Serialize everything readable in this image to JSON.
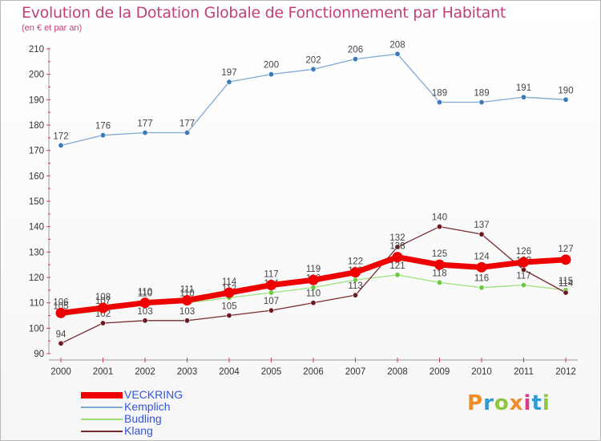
{
  "title": "Evolution de la Dotation Globale de Fonctionnement par Habitant",
  "subtitle": "(en € et par an)",
  "logo": {
    "text": "Proxiti",
    "colors": [
      "#f28c28",
      "#2b9cd8",
      "#8dc63f",
      "#f28c28",
      "#d63c8a",
      "#2b9cd8",
      "#8dc63f"
    ]
  },
  "chart_data": {
    "type": "line",
    "title": "Evolution de la Dotation Globale de Fonctionnement par Habitant",
    "subtitle": "(en € et par an)",
    "xlabel": "",
    "ylabel": "",
    "ylim": [
      90,
      210
    ],
    "y_ticks": [
      90,
      100,
      110,
      120,
      130,
      140,
      150,
      160,
      170,
      180,
      190,
      200,
      210
    ],
    "grid": false,
    "legend_position": "bottom-left",
    "categories": [
      "2000",
      "2001",
      "2002",
      "2003",
      "2004",
      "2005",
      "2006",
      "2007",
      "2008",
      "2009",
      "2010",
      "2011",
      "2012"
    ],
    "series": [
      {
        "name": "Kemplich",
        "color": "#80a8d4",
        "marker": "#3a7ab8",
        "values": [
          172,
          176,
          177,
          177,
          197,
          200,
          202,
          206,
          208,
          189,
          189,
          191,
          190
        ]
      },
      {
        "name": "Budling",
        "color": "#9ce07a",
        "marker": "#6cc840",
        "values": [
          105,
          107,
          110,
          110,
          112,
          114,
          116,
          119,
          121,
          118,
          116,
          117,
          115
        ]
      },
      {
        "name": "Klang",
        "color": "#7a2a30",
        "marker": "#6a1a20",
        "values": [
          94,
          102,
          103,
          103,
          105,
          107,
          110,
          113,
          132,
          140,
          137,
          123,
          114
        ]
      },
      {
        "name": "VECKRING",
        "color": "#ee0000",
        "marker": "#ee0000",
        "values": [
          106,
          108,
          110,
          111,
          114,
          117,
          119,
          122,
          128,
          125,
          124,
          126,
          127
        ]
      }
    ]
  },
  "legend": [
    {
      "name": "VECKRING",
      "color": "#ee0000"
    },
    {
      "name": "Kemplich",
      "color": "#80a8d4"
    },
    {
      "name": "Budling",
      "color": "#9ce07a"
    },
    {
      "name": "Klang",
      "color": "#7a2a30"
    }
  ]
}
